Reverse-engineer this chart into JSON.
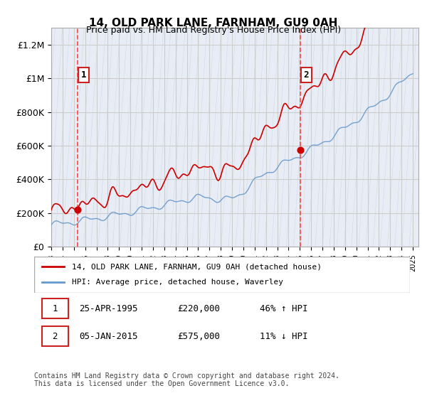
{
  "title": "14, OLD PARK LANE, FARNHAM, GU9 0AH",
  "subtitle": "Price paid vs. HM Land Registry's House Price Index (HPI)",
  "xlabel": "",
  "ylabel": "",
  "ylim": [
    0,
    1300000
  ],
  "xlim_start": 1993.0,
  "xlim_end": 2025.5,
  "yticks": [
    0,
    200000,
    400000,
    600000,
    800000,
    1000000,
    1200000
  ],
  "ytick_labels": [
    "£0",
    "£200K",
    "£400K",
    "£600K",
    "£800K",
    "£1M",
    "£1.2M"
  ],
  "bg_hatch_color": "#d0d8e8",
  "sale1_date": 1995.32,
  "sale1_price": 220000,
  "sale2_date": 2015.02,
  "sale2_price": 575000,
  "legend_entry1": "14, OLD PARK LANE, FARNHAM, GU9 0AH (detached house)",
  "legend_entry2": "HPI: Average price, detached house, Waverley",
  "table_row1": [
    "1",
    "25-APR-1995",
    "£220,000",
    "46% ↑ HPI"
  ],
  "table_row2": [
    "2",
    "05-JAN-2015",
    "£575,000",
    "11% ↓ HPI"
  ],
  "footer": "Contains HM Land Registry data © Crown copyright and database right 2024.\nThis data is licensed under the Open Government Licence v3.0.",
  "red_line_color": "#cc0000",
  "blue_line_color": "#6699cc",
  "hatch_bg": "#e8edf5",
  "grid_color": "#cccccc",
  "dashed_line_color": "#ff4444"
}
